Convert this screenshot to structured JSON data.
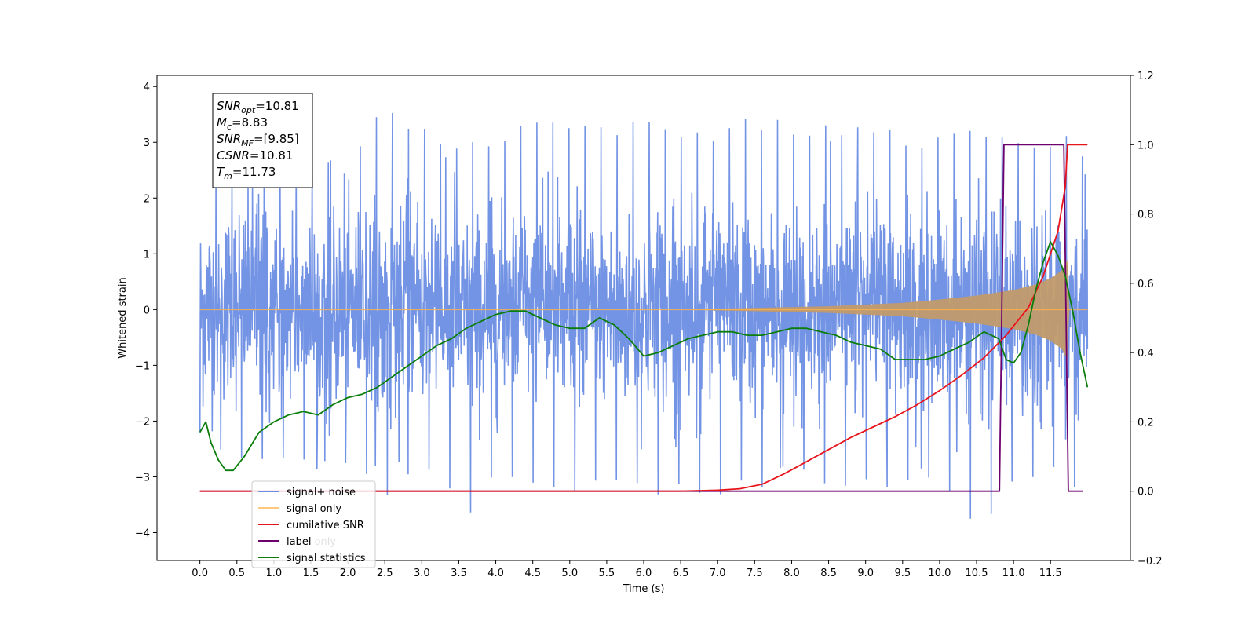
{
  "chart_data": {
    "type": "line",
    "xlabel": "Time (s)",
    "ylabel_left": "Whitened strain",
    "ylabel_right": "",
    "xlim": [
      -0.58,
      12.58
    ],
    "ylim_left": [
      -4.5,
      4.2
    ],
    "ylim_right": [
      -0.2,
      1.2
    ],
    "x_ticks": [
      "0.0",
      "0.5",
      "1.0",
      "1.5",
      "2.0",
      "2.5",
      "3.0",
      "3.5",
      "4.0",
      "4.5",
      "5.0",
      "5.5",
      "6.0",
      "6.5",
      "7.0",
      "7.5",
      "8.0",
      "8.5",
      "9.0",
      "9.5",
      "10.0",
      "10.5",
      "11.0",
      "11.5"
    ],
    "y_ticks_left": [
      "4",
      "3",
      "2",
      "1",
      "0",
      "−1",
      "−2",
      "−3",
      "−4"
    ],
    "y_ticks_right": [
      "1.2",
      "1.0",
      "0.8",
      "0.6",
      "0.4",
      "0.2",
      "0.0",
      "−0.2"
    ],
    "grid": false,
    "legend_position": "lower-left",
    "annotation": {
      "lines": [
        {
          "var": "SNR",
          "sub": "opt",
          "value": "=10.81"
        },
        {
          "var": "M",
          "sub": "c",
          "value": "=8.83"
        },
        {
          "var": "SNR",
          "sub": "MF",
          "value": "=[9.85]"
        },
        {
          "var": "CSNR",
          "sub": "",
          "value": "=10.81"
        },
        {
          "var": "T",
          "sub": "m",
          "value": "=11.73"
        }
      ]
    },
    "series": [
      {
        "name": "signal+ noise",
        "axis": "left",
        "color": "#6b8de3",
        "description_mean": 0.0,
        "description_std": 1.0,
        "x_range": [
          0.0,
          12.0
        ],
        "upper_envelope": [
          [
            0.0,
            2.4
          ],
          [
            0.5,
            2.5
          ],
          [
            1.0,
            2.6
          ],
          [
            1.5,
            2.8
          ],
          [
            2.0,
            2.6
          ],
          [
            2.5,
            3.8
          ],
          [
            3.0,
            3.3
          ],
          [
            3.5,
            3.1
          ],
          [
            4.0,
            3.0
          ],
          [
            4.5,
            3.6
          ],
          [
            5.0,
            3.3
          ],
          [
            5.5,
            3.3
          ],
          [
            6.0,
            3.4
          ],
          [
            6.5,
            3.2
          ],
          [
            7.0,
            3.3
          ],
          [
            7.5,
            3.5
          ],
          [
            8.0,
            3.4
          ],
          [
            8.5,
            3.3
          ],
          [
            9.0,
            3.5
          ],
          [
            9.5,
            3.2
          ],
          [
            10.0,
            3.1
          ],
          [
            10.5,
            3.3
          ],
          [
            11.0,
            3.0
          ],
          [
            11.5,
            3.0
          ],
          [
            11.7,
            3.4
          ],
          [
            12.0,
            2.6
          ]
        ],
        "lower_envelope": [
          [
            0.0,
            -2.2
          ],
          [
            0.5,
            -2.9
          ],
          [
            1.0,
            -2.7
          ],
          [
            1.5,
            -3.0
          ],
          [
            2.0,
            -3.0
          ],
          [
            2.5,
            -3.4
          ],
          [
            3.0,
            -2.8
          ],
          [
            3.5,
            -3.5
          ],
          [
            3.7,
            -3.7
          ],
          [
            4.0,
            -2.9
          ],
          [
            4.5,
            -3.3
          ],
          [
            5.0,
            -3.3
          ],
          [
            5.5,
            -3.2
          ],
          [
            6.0,
            -3.5
          ],
          [
            6.5,
            -3.2
          ],
          [
            7.0,
            -3.5
          ],
          [
            7.5,
            -3.3
          ],
          [
            8.0,
            -3.0
          ],
          [
            8.5,
            -3.3
          ],
          [
            9.0,
            -3.2
          ],
          [
            9.5,
            -3.2
          ],
          [
            10.0,
            -3.0
          ],
          [
            10.5,
            -4.1
          ],
          [
            11.0,
            -3.2
          ],
          [
            11.5,
            -3.0
          ],
          [
            12.0,
            -3.3
          ]
        ]
      },
      {
        "name": "signal only",
        "axis": "left",
        "color": "#ffb347",
        "chirp_amplitude": [
          [
            0.0,
            0.0
          ],
          [
            6.5,
            0.0
          ],
          [
            7.5,
            0.03
          ],
          [
            8.5,
            0.06
          ],
          [
            9.5,
            0.12
          ],
          [
            10.0,
            0.18
          ],
          [
            10.5,
            0.25
          ],
          [
            11.0,
            0.35
          ],
          [
            11.3,
            0.45
          ],
          [
            11.5,
            0.56
          ],
          [
            11.65,
            0.7
          ],
          [
            11.73,
            0.9
          ],
          [
            11.75,
            0.0
          ],
          [
            12.0,
            0.0
          ]
        ]
      },
      {
        "name": "cumilative SNR",
        "axis": "right",
        "color": "#e8141c",
        "x": [
          0.0,
          6.5,
          7.0,
          7.3,
          7.6,
          7.9,
          8.2,
          8.5,
          8.8,
          9.1,
          9.4,
          9.7,
          10.0,
          10.3,
          10.6,
          10.9,
          11.2,
          11.4,
          11.6,
          11.7,
          11.73,
          11.8,
          12.0
        ],
        "y": [
          0.0,
          0.0,
          0.003,
          0.007,
          0.02,
          0.05,
          0.085,
          0.12,
          0.155,
          0.185,
          0.215,
          0.25,
          0.29,
          0.335,
          0.385,
          0.45,
          0.53,
          0.62,
          0.75,
          0.88,
          1.0,
          1.0,
          1.0
        ]
      },
      {
        "name": "label",
        "axis": "right",
        "color": "#6c006c",
        "x": [
          0.0,
          10.81,
          10.87,
          11.68,
          11.74,
          11.94
        ],
        "y": [
          0.0,
          0.0,
          1.0,
          1.0,
          0.0,
          0.0
        ]
      },
      {
        "name": "label only",
        "axis": "right",
        "color": "#6c006c",
        "hidden_behind_legend": true,
        "x": [],
        "y": []
      },
      {
        "name": "signal statistics",
        "axis": "right",
        "color": "#0a7d0a",
        "x": [
          0.0,
          0.08,
          0.15,
          0.25,
          0.35,
          0.45,
          0.6,
          0.8,
          1.0,
          1.2,
          1.4,
          1.6,
          1.8,
          2.0,
          2.2,
          2.4,
          2.6,
          2.8,
          3.0,
          3.2,
          3.4,
          3.6,
          3.8,
          4.0,
          4.2,
          4.4,
          4.6,
          4.8,
          5.0,
          5.2,
          5.4,
          5.6,
          5.8,
          6.0,
          6.2,
          6.4,
          6.6,
          6.8,
          7.0,
          7.2,
          7.4,
          7.6,
          7.8,
          8.0,
          8.2,
          8.4,
          8.6,
          8.8,
          9.0,
          9.2,
          9.4,
          9.6,
          9.8,
          10.0,
          10.2,
          10.4,
          10.6,
          10.8,
          10.9,
          11.0,
          11.1,
          11.2,
          11.3,
          11.4,
          11.5,
          11.6,
          11.7,
          11.8,
          11.9,
          12.0
        ],
        "y": [
          0.17,
          0.2,
          0.14,
          0.09,
          0.06,
          0.06,
          0.1,
          0.17,
          0.2,
          0.22,
          0.23,
          0.22,
          0.25,
          0.27,
          0.28,
          0.3,
          0.33,
          0.36,
          0.39,
          0.42,
          0.44,
          0.47,
          0.49,
          0.51,
          0.52,
          0.52,
          0.5,
          0.48,
          0.47,
          0.47,
          0.5,
          0.48,
          0.44,
          0.39,
          0.4,
          0.42,
          0.44,
          0.45,
          0.46,
          0.46,
          0.45,
          0.45,
          0.46,
          0.47,
          0.47,
          0.46,
          0.45,
          0.43,
          0.42,
          0.41,
          0.38,
          0.38,
          0.38,
          0.39,
          0.41,
          0.43,
          0.46,
          0.44,
          0.38,
          0.37,
          0.4,
          0.48,
          0.58,
          0.66,
          0.72,
          0.68,
          0.62,
          0.52,
          0.4,
          0.3
        ]
      }
    ]
  }
}
